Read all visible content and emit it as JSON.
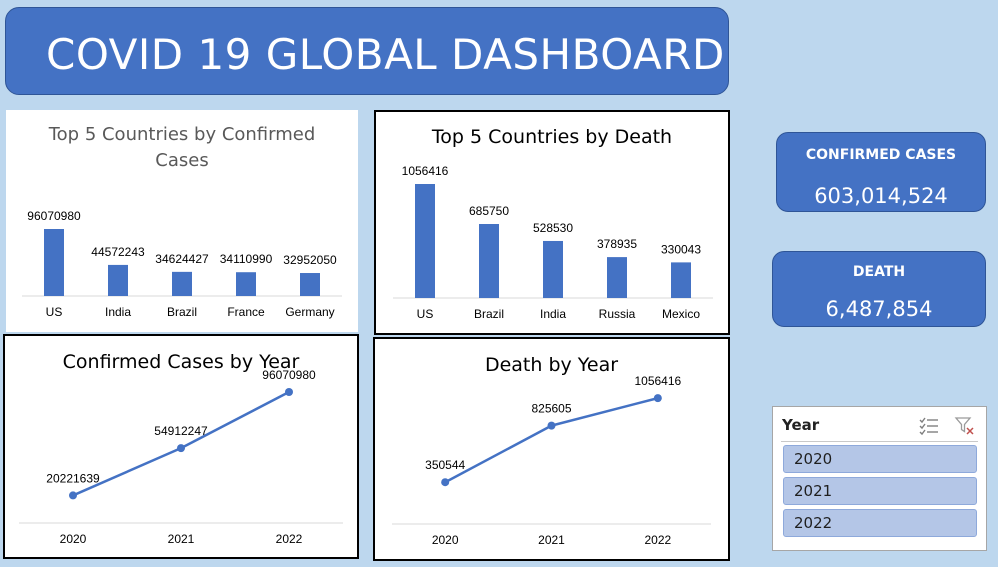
{
  "dashboard": {
    "title": "COVID 19 GLOBAL DASHBOARD",
    "bar_color": "#4472c4",
    "background_color": "#bdd7ee"
  },
  "kpis": {
    "confirmed": {
      "label": "CONFIRMED CASES",
      "value": "603,014,524"
    },
    "death": {
      "label": "DEATH",
      "value": "6,487,854"
    }
  },
  "slicer": {
    "title": "Year",
    "icons": [
      "multi-select-icon",
      "clear-filter-icon"
    ],
    "items": [
      {
        "label": "2020"
      },
      {
        "label": "2021"
      },
      {
        "label": "2022"
      }
    ]
  },
  "chart_data": [
    {
      "id": "top5-confirmed",
      "type": "bar",
      "title": "Top 5 Countries by Confirmed Cases",
      "title_lines": [
        "Top 5 Countries by Confirmed",
        "Cases"
      ],
      "categories": [
        "US",
        "India",
        "Brazil",
        "France",
        "Germany"
      ],
      "values": [
        96070980,
        44572243,
        34624427,
        34110990,
        32952050
      ],
      "ylim": [
        0,
        96070980
      ],
      "grid": false,
      "legend": "none"
    },
    {
      "id": "top5-death",
      "type": "bar",
      "title": "Top 5 Countries by Death",
      "categories": [
        "US",
        "Brazil",
        "India",
        "Russia",
        "Mexico"
      ],
      "values": [
        1056416,
        685750,
        528530,
        378935,
        330043
      ],
      "ylim": [
        0,
        1056416
      ],
      "grid": false,
      "legend": "none"
    },
    {
      "id": "confirmed-by-year",
      "type": "line",
      "title": "Confirmed Cases by Year",
      "categories": [
        "2020",
        "2021",
        "2022"
      ],
      "values": [
        20221639,
        54912247,
        96070980
      ],
      "ylim": [
        0,
        110000000
      ],
      "grid": false,
      "legend": "none"
    },
    {
      "id": "death-by-year",
      "type": "line",
      "title": "Death by Year",
      "categories": [
        "2020",
        "2021",
        "2022"
      ],
      "values": [
        350544,
        825605,
        1056416
      ],
      "ylim": [
        0,
        1200000
      ],
      "grid": false,
      "legend": "none"
    }
  ]
}
